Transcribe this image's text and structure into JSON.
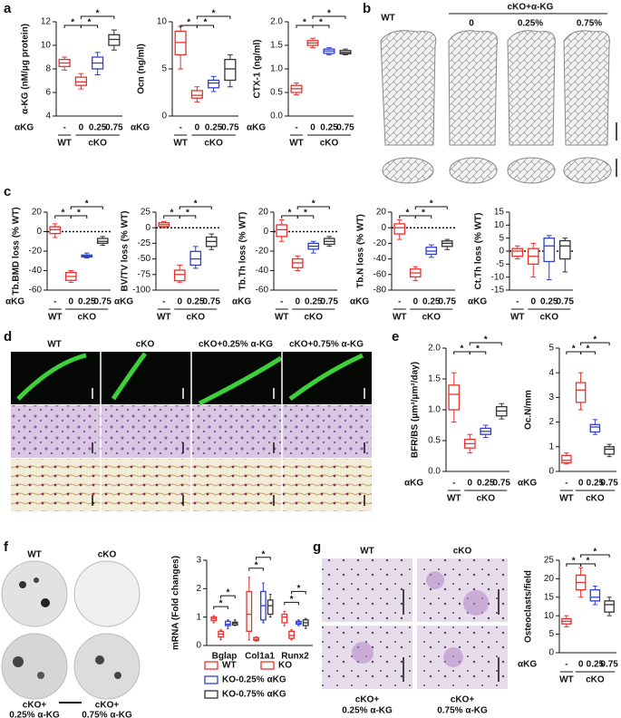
{
  "panel_labels": [
    "a",
    "b",
    "c",
    "d",
    "e",
    "f",
    "g"
  ],
  "dose_title": "αKG",
  "dose_labels": [
    "-",
    "0",
    "0.25",
    "0.75"
  ],
  "genotypes": [
    "WT",
    "cKO"
  ],
  "group_colors": [
    "#e8322d",
    "#e8322d",
    "#2f3fd0",
    "#333333"
  ],
  "sig_label": "*",
  "panel_b": {
    "header": "cKO+α-KG",
    "columns": [
      "WT",
      "0",
      "0.25%",
      "0.75%"
    ]
  },
  "panel_d": {
    "columns": [
      "WT",
      "cKO",
      "cKO+0.25% α-KG",
      "cKO+0.75% α-KG"
    ]
  },
  "panel_f": {
    "dishes": [
      "WT",
      "cKO"
    ],
    "captions": [
      [
        "cKO+",
        "0.25% α-KG"
      ],
      [
        "cKO+",
        "0.75% α-KG"
      ]
    ]
  },
  "panel_g": {
    "columns": [
      "WT",
      "cKO"
    ],
    "captions": [
      [
        "cKO+",
        "0.25% α-KG"
      ],
      [
        "cKO+",
        "0.75% α-KG"
      ]
    ]
  },
  "chart_data": [
    {
      "type": "box",
      "ylabel": "α-KG (nM/μg protein)",
      "ylim": [
        4,
        12
      ],
      "yticks": [
        4,
        6,
        8,
        10,
        12
      ],
      "sig": true,
      "boxes": [
        [
          7.9,
          8.2,
          8.5,
          8.8,
          9.0
        ],
        [
          6.3,
          6.6,
          6.9,
          7.3,
          7.6
        ],
        [
          7.5,
          8.0,
          8.5,
          9.0,
          9.4
        ],
        [
          9.6,
          10.0,
          10.5,
          10.9,
          11.3
        ]
      ]
    },
    {
      "type": "box",
      "ylabel": "Ocn (ng/ml)",
      "ylim": [
        0,
        10
      ],
      "yticks": [
        0,
        5,
        10
      ],
      "sig": true,
      "boxes": [
        [
          5.0,
          6.5,
          7.8,
          9.0,
          9.5
        ],
        [
          1.5,
          1.9,
          2.2,
          2.7,
          3.1
        ],
        [
          2.6,
          3.0,
          3.5,
          3.8,
          4.2
        ],
        [
          3.1,
          3.8,
          5.0,
          6.0,
          6.5
        ]
      ]
    },
    {
      "type": "box",
      "ylabel": "CTX-1 (ng/ml)",
      "ylim": [
        0,
        2
      ],
      "yticks": [
        {
          "value": 0,
          "label": "0.0"
        },
        0.5,
        {
          "value": 1,
          "label": "1.0"
        },
        1.5,
        {
          "value": 2,
          "label": "2.0"
        }
      ],
      "sig": true,
      "boxes": [
        [
          0.45,
          0.5,
          0.58,
          0.65,
          0.7
        ],
        [
          1.45,
          1.5,
          1.55,
          1.6,
          1.65
        ],
        [
          1.3,
          1.33,
          1.38,
          1.42,
          1.45
        ],
        [
          1.3,
          1.32,
          1.35,
          1.39,
          1.42
        ]
      ]
    },
    {
      "type": "box",
      "ylabel": "Tb.BMD loss (% WT)",
      "ylim": [
        -60,
        20
      ],
      "yticks": [
        -60,
        -40,
        -20,
        0,
        20
      ],
      "hline": 0,
      "sig": true,
      "boxes": [
        [
          -6,
          -2,
          2,
          5,
          8
        ],
        [
          -52,
          -50,
          -46,
          -42,
          -40
        ],
        [
          -27,
          -26,
          -25,
          -24,
          -22
        ],
        [
          -14,
          -12,
          -10,
          -7,
          -5
        ]
      ]
    },
    {
      "type": "box",
      "ylabel": "BV/TV loss (% WT)",
      "ylim": [
        -100,
        25
      ],
      "yticks": [
        -100,
        -75,
        -50,
        -25,
        0,
        25
      ],
      "hline": 0,
      "sig": true,
      "boxes": [
        [
          0,
          2,
          5,
          8,
          10
        ],
        [
          -88,
          -85,
          -75,
          -68,
          -60
        ],
        [
          -65,
          -60,
          -50,
          -38,
          -30
        ],
        [
          -35,
          -30,
          -22,
          -15,
          -10
        ]
      ]
    },
    {
      "type": "box",
      "ylabel": "Tb.Th loss (% WT)",
      "ylim": [
        -60,
        20
      ],
      "yticks": [
        -60,
        -40,
        -20,
        0,
        20
      ],
      "hline": 0,
      "sig": true,
      "boxes": [
        [
          -10,
          -5,
          2,
          7,
          12
        ],
        [
          -40,
          -37,
          -32,
          -28,
          -25
        ],
        [
          -22,
          -18,
          -15,
          -12,
          -10
        ],
        [
          -15,
          -13,
          -10,
          -7,
          -5
        ]
      ]
    },
    {
      "type": "box",
      "ylabel": "Tb.N loss (% WT)",
      "ylim": [
        -80,
        20
      ],
      "yticks": [
        -80,
        -60,
        -40,
        -20,
        0,
        20
      ],
      "hline": 0,
      "sig": true,
      "boxes": [
        [
          -15,
          -8,
          0,
          5,
          10
        ],
        [
          -68,
          -63,
          -58,
          -53,
          -50
        ],
        [
          -38,
          -34,
          -30,
          -25,
          -22
        ],
        [
          -28,
          -24,
          -20,
          -17,
          -15
        ]
      ]
    },
    {
      "type": "box",
      "ylabel": "Ct.Th loss (% WT)",
      "ylim": [
        -15,
        15
      ],
      "yticks": [
        -15,
        -10,
        -5,
        0,
        5,
        10,
        15
      ],
      "hline": 0,
      "sig": false,
      "boxes": [
        [
          -3,
          -2,
          0,
          1,
          2
        ],
        [
          -10,
          -5,
          -2,
          1,
          3
        ],
        [
          -11,
          -4,
          2,
          5,
          6
        ],
        [
          -8,
          -3,
          2,
          4,
          5
        ]
      ]
    },
    {
      "type": "box",
      "ylabel": "BFR/BS (μm³/μm²/day)",
      "ylim": [
        0,
        2
      ],
      "yticks": [
        {
          "value": 0,
          "label": "0.0"
        },
        0.5,
        {
          "value": 1,
          "label": "1.0"
        },
        1.5,
        {
          "value": 2,
          "label": "2.0"
        }
      ],
      "sig": true,
      "boxes": [
        [
          0.8,
          1.0,
          1.25,
          1.4,
          1.6
        ],
        [
          0.3,
          0.38,
          0.45,
          0.52,
          0.6
        ],
        [
          0.55,
          0.6,
          0.65,
          0.7,
          0.75
        ],
        [
          0.85,
          0.9,
          0.98,
          1.05,
          1.1
        ]
      ]
    },
    {
      "type": "box",
      "ylabel": "Oc.N/mm",
      "ylim": [
        0,
        5
      ],
      "yticks": [
        0,
        1,
        2,
        3,
        4,
        5
      ],
      "sig": true,
      "boxes": [
        [
          0.3,
          0.35,
          0.45,
          0.65,
          0.75
        ],
        [
          2.5,
          2.8,
          3.3,
          3.6,
          4.0
        ],
        [
          1.5,
          1.6,
          1.8,
          1.9,
          2.1
        ],
        [
          0.6,
          0.7,
          0.9,
          1.0,
          1.1
        ]
      ]
    },
    {
      "type": "groupedbox",
      "ylabel": "mRNA (Fold changes)",
      "ylim": [
        0,
        3
      ],
      "yticks": [
        0,
        1,
        2,
        3
      ],
      "sig": true,
      "categories": [
        "Bglap",
        "Col1a1",
        "Runx2"
      ],
      "series": [
        {
          "name": "WT",
          "color": "#e8322d",
          "values": [
            [
              0.8,
              0.88,
              0.95,
              1.0,
              1.05
            ],
            [
              0.2,
              0.5,
              1.1,
              1.9,
              2.4
            ],
            [
              0.7,
              0.8,
              1.0,
              1.1,
              1.2
            ]
          ]
        },
        {
          "name": "KO",
          "color": "#e8322d",
          "values": [
            [
              0.2,
              0.3,
              0.4,
              0.5,
              0.55
            ],
            [
              0.15,
              0.18,
              0.22,
              0.28,
              0.3
            ],
            [
              0.2,
              0.25,
              0.35,
              0.5,
              0.55
            ]
          ]
        },
        {
          "name": "KO-0.25% αKG",
          "color": "#2f3fd0",
          "values": [
            [
              0.6,
              0.7,
              0.75,
              0.85,
              0.9
            ],
            [
              0.8,
              0.9,
              1.4,
              1.9,
              2.2
            ],
            [
              0.7,
              0.75,
              0.8,
              0.85,
              0.9
            ]
          ]
        },
        {
          "name": "KO-0.75% αKG",
          "color": "#333333",
          "values": [
            [
              0.7,
              0.72,
              0.78,
              0.82,
              0.9
            ],
            [
              1.0,
              1.1,
              1.4,
              1.6,
              1.8
            ],
            [
              0.6,
              0.7,
              0.8,
              0.9,
              0.95
            ]
          ]
        }
      ]
    },
    {
      "type": "box",
      "ylabel": "Osteoclasts/field",
      "ylim": [
        0,
        25
      ],
      "yticks": [
        0,
        5,
        10,
        15,
        20,
        25
      ],
      "sig": true,
      "boxes": [
        [
          7,
          7.8,
          8.5,
          9.2,
          10
        ],
        [
          15,
          17,
          19,
          21,
          23
        ],
        [
          13,
          14,
          15,
          17,
          18
        ],
        [
          10,
          11,
          13,
          14,
          15
        ]
      ]
    }
  ]
}
